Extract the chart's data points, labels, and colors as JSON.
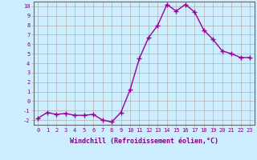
{
  "x": [
    0,
    1,
    2,
    3,
    4,
    5,
    6,
    7,
    8,
    9,
    10,
    11,
    12,
    13,
    14,
    15,
    16,
    17,
    18,
    19,
    20,
    21,
    22,
    23
  ],
  "y": [
    -1.8,
    -1.2,
    -1.4,
    -1.3,
    -1.5,
    -1.5,
    -1.4,
    -2.0,
    -2.2,
    -1.2,
    1.2,
    4.5,
    6.7,
    8.0,
    10.2,
    9.5,
    10.2,
    9.4,
    7.5,
    6.5,
    5.3,
    5.0,
    4.6,
    4.6
  ],
  "line_color": "#990099",
  "marker": "+",
  "marker_size": 4,
  "bg_color": "#cceeff",
  "grid_color": "#b0b0b0",
  "ylabel_ticks": [
    -2,
    -1,
    0,
    1,
    2,
    3,
    4,
    5,
    6,
    7,
    8,
    9,
    10
  ],
  "xlabel": "Windchill (Refroidissement éolien,°C)",
  "ylim": [
    -2.5,
    10.5
  ],
  "xlim": [
    -0.5,
    23.5
  ],
  "line_width": 1.0,
  "tick_fontsize": 5.0,
  "xlabel_fontsize": 6.0,
  "label_color": "#800080"
}
